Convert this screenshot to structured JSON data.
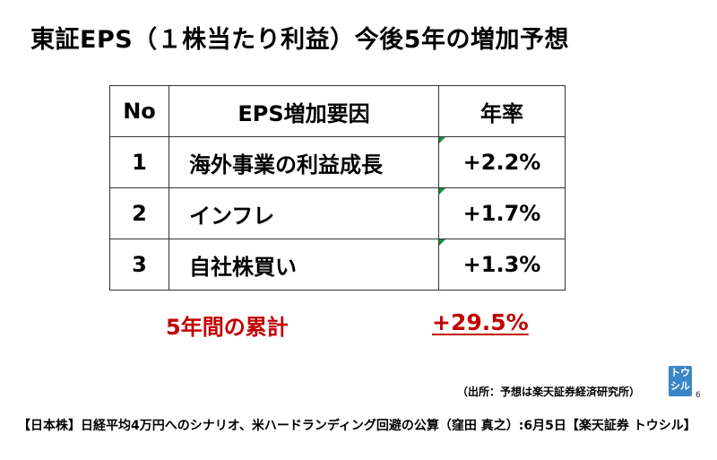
{
  "title": "東証EPS（１株当たり利益）今後5年の増加予想",
  "table": {
    "headers": {
      "no": "No",
      "factor": "EPS増加要因",
      "rate": "年率"
    },
    "rows": [
      {
        "no": "1",
        "factor": "海外事業の利益成長",
        "rate": "+2.2%"
      },
      {
        "no": "2",
        "factor": "インフレ",
        "rate": "+1.7%"
      },
      {
        "no": "3",
        "factor": "自社株買い",
        "rate": "+1.3%"
      }
    ]
  },
  "summary": {
    "label": "5年間の累計",
    "value": "+29.5%"
  },
  "source": "（出所：予想は楽天証券経済研究所）",
  "logo": {
    "line1": "トウ",
    "line2": "シル"
  },
  "page_number": "6",
  "footer": "【日本株】日経平均4万円へのシナリオ、米ハードランディング回避の公算（窪田 真之）:6月5日【楽天証券 トウシル】",
  "colors": {
    "accent_red": "#c00000",
    "logo_blue": "#3a86c8",
    "cell_marker_green": "#1a8f3c"
  }
}
